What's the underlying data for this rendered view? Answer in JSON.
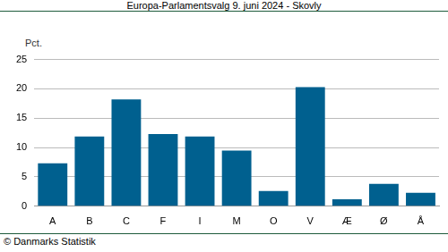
{
  "chart_data": {
    "type": "bar",
    "title": "Europa-Parlamentsvalg 9. juni 2024 - Skovly",
    "ylabel": "Pct.",
    "annotations": [
      "© Danmarks Statistik"
    ],
    "categories": [
      "A",
      "B",
      "C",
      "F",
      "I",
      "M",
      "O",
      "V",
      "Æ",
      "Ø",
      "Å"
    ],
    "values": [
      7.3,
      11.9,
      18.2,
      12.3,
      11.9,
      9.5,
      2.6,
      20.3,
      1.2,
      3.8,
      2.3
    ],
    "color": "#00608f",
    "ylim": [
      0,
      25
    ],
    "yticks": [
      0,
      5,
      10,
      15,
      20,
      25
    ],
    "grid": true
  }
}
